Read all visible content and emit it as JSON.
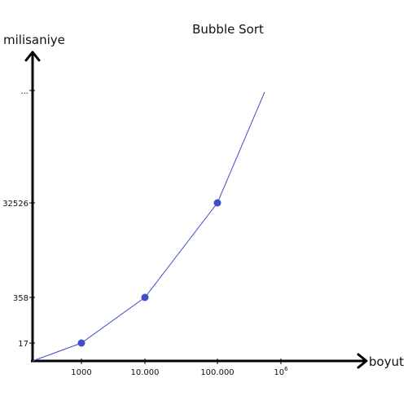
{
  "chart_data": {
    "type": "line",
    "title": "Bubble Sort",
    "xlabel": "boyut",
    "ylabel": "milisaniye",
    "x_ticks": [
      {
        "label": "1000"
      },
      {
        "label": "10.000"
      },
      {
        "label": "100.000"
      },
      {
        "label": "10",
        "sup": "6"
      }
    ],
    "y_ticks": [
      {
        "label": "17"
      },
      {
        "label": "358"
      },
      {
        "label": "32526"
      },
      {
        "label": "..."
      }
    ],
    "series": [
      {
        "color": "#3f4fc9",
        "points": [
          {
            "x": "0",
            "y": "0",
            "marker": false
          },
          {
            "x": "1000",
            "y": "17",
            "marker": true
          },
          {
            "x": "10.000",
            "y": "358",
            "marker": true
          },
          {
            "x": "100.000",
            "y": "32526",
            "marker": true
          },
          {
            "x": "10^6",
            "y": "...",
            "marker": false
          }
        ]
      }
    ],
    "x_scale": "log",
    "y_scale": "nonlinear",
    "grid": false,
    "legend": "none",
    "axis_color": "#000000",
    "line_color": "#3f4fc9"
  }
}
